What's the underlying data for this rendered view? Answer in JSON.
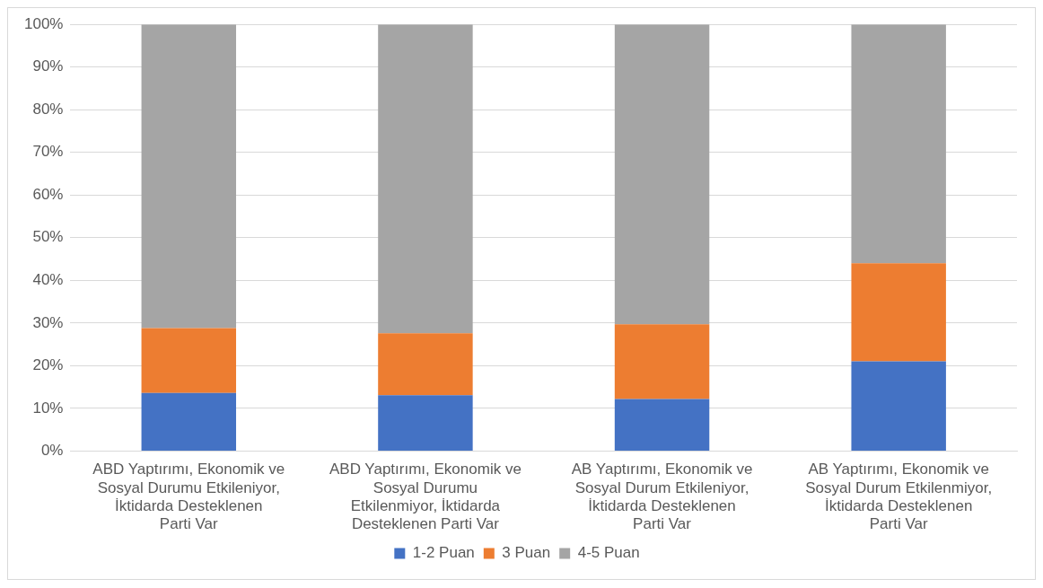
{
  "chart_data": {
    "type": "bar",
    "stacked": true,
    "categories": [
      "ABD Yaptırımı, Ekonomik ve Sosyal Durumu Etkileniyor, İktidarda Desteklenen Parti Var",
      "ABD Yaptırımı, Ekonomik ve Sosyal Durumu Etkilenmiyor, İktidarda Desteklenen Parti Var",
      "AB Yaptırımı, Ekonomik ve Sosyal Durum Etkileniyor, İktidarda Desteklenen Parti Var",
      "AB Yaptırımı, Ekonomik ve Sosyal Durum Etkilenmiyor, İktidarda Desteklenen Parti Var"
    ],
    "series": [
      {
        "name": "1-2 Puan",
        "color": "#4472c4",
        "values": [
          13.6,
          13.1,
          12.2,
          21.0
        ]
      },
      {
        "name": "3 Puan",
        "color": "#ed7d31",
        "values": [
          15.2,
          14.5,
          17.5,
          23.0
        ]
      },
      {
        "name": "4-5 Puan",
        "color": "#a5a5a5",
        "values": [
          71.2,
          72.4,
          70.3,
          56.0
        ]
      }
    ],
    "ylim": [
      0,
      100
    ],
    "yticks": [
      {
        "value": 0,
        "label": "0%"
      },
      {
        "value": 10,
        "label": "10%"
      },
      {
        "value": 20,
        "label": "20%"
      },
      {
        "value": 30,
        "label": "30%"
      },
      {
        "value": 40,
        "label": "40%"
      },
      {
        "value": 50,
        "label": "50%"
      },
      {
        "value": 60,
        "label": "60%"
      },
      {
        "value": 70,
        "label": "70%"
      },
      {
        "value": 80,
        "label": "80%"
      },
      {
        "value": 90,
        "label": "90%"
      },
      {
        "value": 100,
        "label": "100%"
      }
    ],
    "grid": "y",
    "legend": "bottom"
  }
}
